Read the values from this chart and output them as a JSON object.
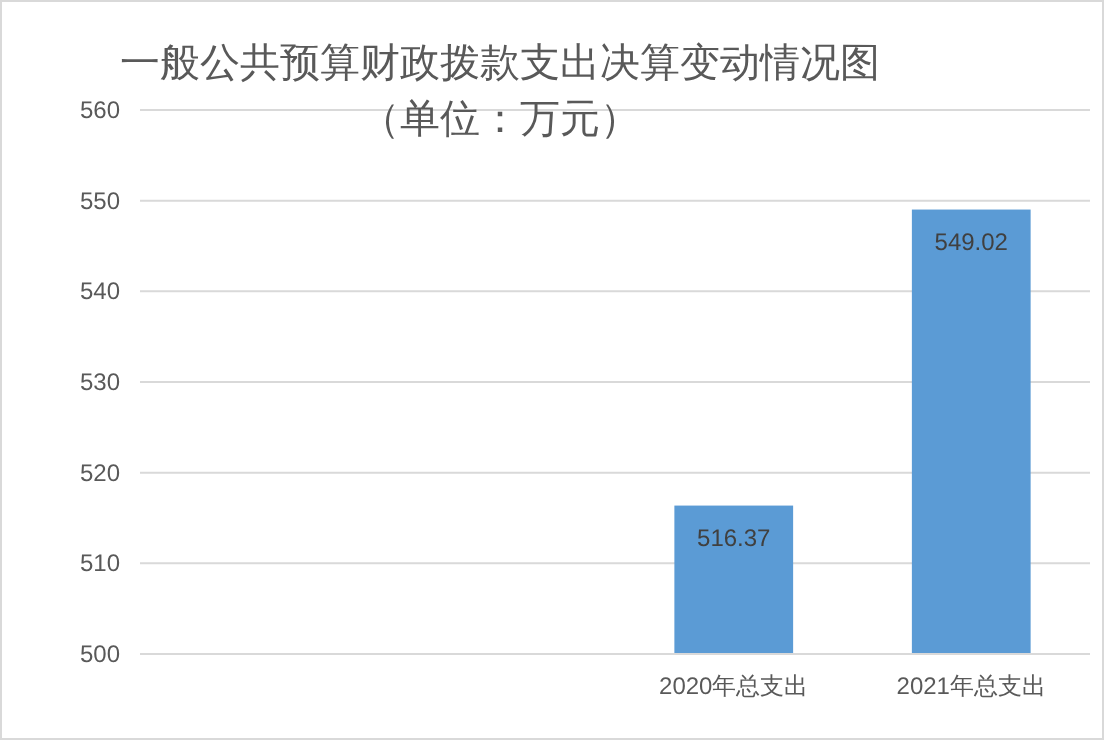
{
  "chart_data": {
    "type": "bar",
    "title": "一般公共预算财政拨款支出决算变动情况图",
    "subtitle": "（单位：万元）",
    "categories": [
      null,
      null,
      "2020年总支出",
      "2021年总支出"
    ],
    "values": [
      null,
      null,
      516.37,
      549.02
    ],
    "color": "#5b9bd5",
    "ylim": [
      500,
      560
    ],
    "yticks": [
      500,
      510,
      520,
      530,
      540,
      550,
      560
    ],
    "grid": "y",
    "data_labels": true
  }
}
